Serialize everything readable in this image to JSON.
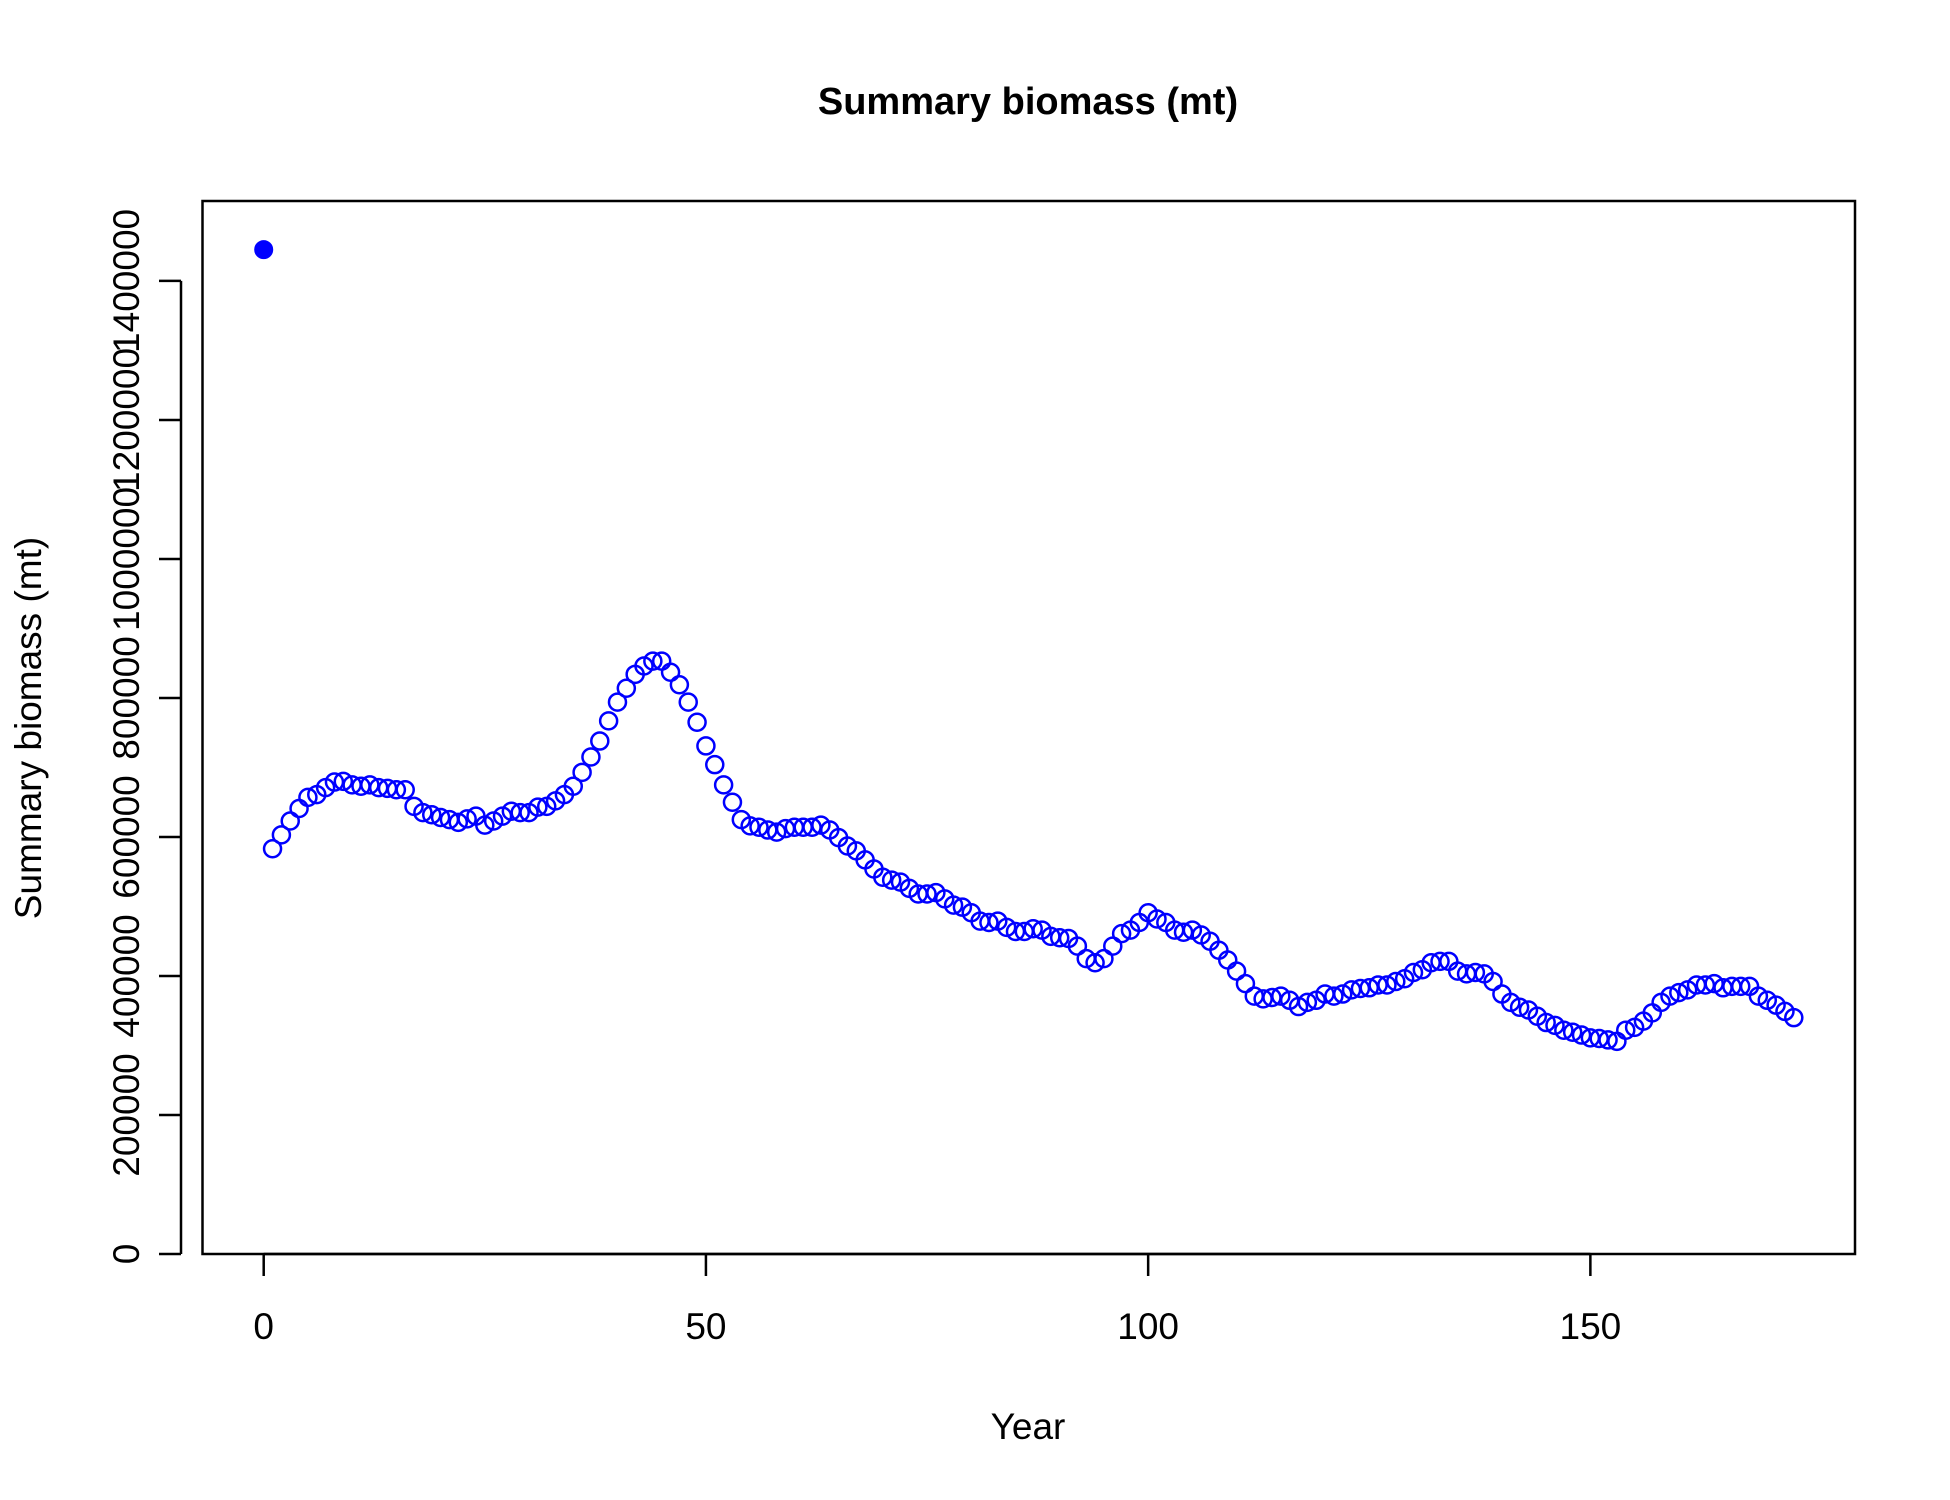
{
  "chart_data": {
    "type": "scatter",
    "title": "Summary biomass (mt)",
    "x_label": "Year",
    "y_label": "Summary biomass (mt)",
    "xlim": [
      -6.92,
      179.92
    ],
    "xticks": [
      0,
      50,
      100,
      150
    ],
    "ylim": [
      0,
      1515000
    ],
    "yticks": [
      0,
      200000,
      400000,
      600000,
      800000,
      1000000,
      1200000,
      1400000
    ],
    "series": [
      {
        "color": "#0000ff",
        "marker": "filled",
        "x": [
          0
        ],
        "values": [
          1445000
        ]
      },
      {
        "color": "#0000ff",
        "marker": "open",
        "x": [
          1,
          2,
          3,
          4,
          5,
          6,
          7,
          8,
          9,
          10,
          11,
          12,
          13,
          14,
          15,
          16,
          17,
          18,
          19,
          20,
          21,
          22,
          23,
          24,
          25,
          26,
          27,
          28,
          29,
          30,
          31,
          32,
          33,
          34,
          35,
          36,
          37,
          38,
          39,
          40,
          41,
          42,
          43,
          44,
          45,
          46,
          47,
          48,
          49,
          50,
          51,
          52,
          53,
          54,
          55,
          56,
          57,
          58,
          59,
          60,
          61,
          62,
          63,
          64,
          65,
          66,
          67,
          68,
          69,
          70,
          71,
          72,
          73,
          74,
          75,
          76,
          77,
          78,
          79,
          80,
          81,
          82,
          83,
          84,
          85,
          86,
          87,
          88,
          89,
          90,
          91,
          92,
          93,
          94,
          95,
          96,
          97,
          98,
          99,
          100,
          101,
          102,
          103,
          104,
          105,
          106,
          107,
          108,
          109,
          110,
          111,
          112,
          113,
          114,
          115,
          116,
          117,
          118,
          119,
          120,
          121,
          122,
          123,
          124,
          125,
          126,
          127,
          128,
          129,
          130,
          131,
          132,
          133,
          134,
          135,
          136,
          137,
          138,
          139,
          140,
          141,
          142,
          143,
          144,
          145,
          146,
          147,
          148,
          149,
          150,
          151,
          152,
          153,
          154,
          155,
          156,
          157,
          158,
          159,
          160,
          161,
          162,
          163,
          164,
          165,
          166,
          167,
          168,
          169,
          170,
          171,
          172,
          173
        ],
        "values": [
          583000,
          603000,
          623000,
          641000,
          657000,
          661000,
          671000,
          679000,
          680000,
          675000,
          673000,
          675000,
          671000,
          670000,
          668000,
          668000,
          644000,
          635000,
          632000,
          628000,
          625000,
          621000,
          626000,
          630000,
          617000,
          623000,
          630000,
          637000,
          635000,
          635000,
          643000,
          644000,
          652000,
          661000,
          673000,
          693000,
          715000,
          738000,
          767000,
          794000,
          814000,
          834000,
          846000,
          853000,
          853000,
          837000,
          819000,
          794000,
          765000,
          731000,
          704000,
          675000,
          650000,
          625000,
          616000,
          614000,
          610000,
          607000,
          612000,
          614000,
          614000,
          614000,
          617000,
          610000,
          599000,
          587000,
          580000,
          567000,
          554000,
          542000,
          538000,
          535000,
          526000,
          518000,
          518000,
          520000,
          511000,
          502000,
          499000,
          491000,
          479000,
          477000,
          479000,
          470000,
          464000,
          464000,
          468000,
          466000,
          457000,
          455000,
          454000,
          443000,
          425000,
          419000,
          425000,
          443000,
          461000,
          466000,
          477000,
          491000,
          482000,
          477000,
          466000,
          463000,
          466000,
          459000,
          450000,
          437000,
          423000,
          407000,
          389000,
          371000,
          367000,
          369000,
          371000,
          365000,
          356000,
          362000,
          365000,
          374000,
          371000,
          374000,
          380000,
          382000,
          383000,
          387000,
          387000,
          392000,
          396000,
          405000,
          409000,
          419000,
          421000,
          421000,
          407000,
          403000,
          405000,
          403000,
          392000,
          374000,
          362000,
          355000,
          351000,
          342000,
          333000,
          329000,
          322000,
          319000,
          315000,
          311000,
          310000,
          308000,
          306000,
          322000,
          326000,
          335000,
          347000,
          362000,
          371000,
          376000,
          380000,
          387000,
          387000,
          389000,
          383000,
          385000,
          385000,
          385000,
          371000,
          365000,
          358000,
          349000,
          340000
        ]
      }
    ]
  }
}
